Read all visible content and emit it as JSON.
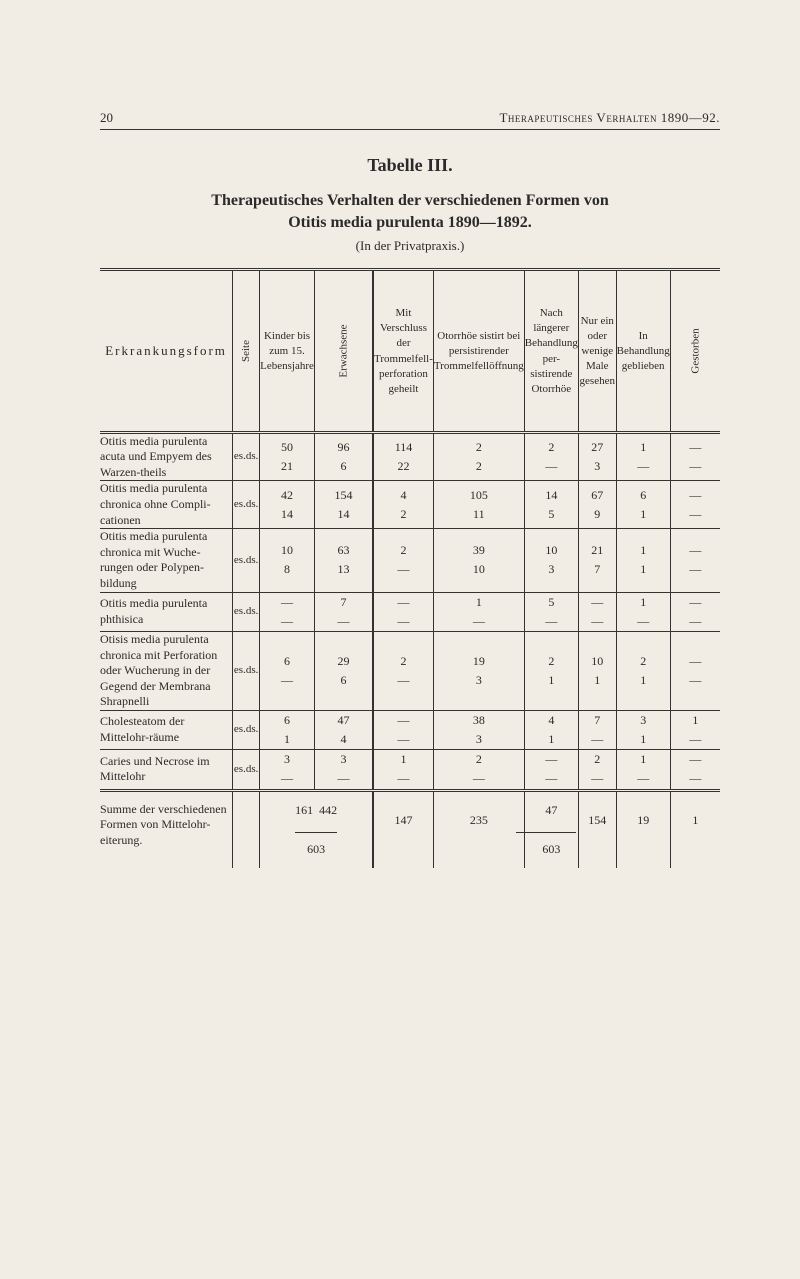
{
  "page_number": "20",
  "running_title": "Therapeutisches Verhalten 1890—92.",
  "tabelle_label": "Tabelle III.",
  "main_title": "Therapeutisches Verhalten der verschiedenen Formen von",
  "main_subtitle": "Otitis media purulenta 1890—1892.",
  "paren": "(In der Privatpraxis.)",
  "headers": {
    "rowhead": "Erkrankungsform",
    "cols": [
      "Seite",
      "Kinder bis zum 15. Lebensjahre",
      "Erwachsene",
      "Mit Verschluss der Trommelfell-perforation geheilt",
      "Otorrhöe sistirt bei persistirender Trommelfellöffnung",
      "Nach längerer Behandlung per-sistirende Otorrhöe",
      "Nur ein oder wenige Male gesehen",
      "In Behandlung geblieben",
      "Gestorben"
    ]
  },
  "seite_pair": "es.\nds.",
  "rows": [
    {
      "label": "Otitis media purulenta acuta und Empyem des Warzen-theils",
      "kinder": [
        "50",
        "21"
      ],
      "erw": [
        "96",
        "6"
      ],
      "c1": [
        "114",
        "22"
      ],
      "c2": [
        "2",
        "2"
      ],
      "c3": [
        "2",
        "—"
      ],
      "c4": [
        "27",
        "3"
      ],
      "c5": [
        "1",
        "—"
      ],
      "c6": [
        "—",
        "—"
      ]
    },
    {
      "label": "Otitis media purulenta chronica ohne Compli-cationen",
      "kinder": [
        "42",
        "14"
      ],
      "erw": [
        "154",
        "14"
      ],
      "c1": [
        "4",
        "2"
      ],
      "c2": [
        "105",
        "11"
      ],
      "c3": [
        "14",
        "5"
      ],
      "c4": [
        "67",
        "9"
      ],
      "c5": [
        "6",
        "1"
      ],
      "c6": [
        "—",
        "—"
      ]
    },
    {
      "label": "Otitis media purulenta chronica mit Wuche-rungen oder Polypen-bildung",
      "kinder": [
        "10",
        "8"
      ],
      "erw": [
        "63",
        "13"
      ],
      "c1": [
        "2",
        "—"
      ],
      "c2": [
        "39",
        "10"
      ],
      "c3": [
        "10",
        "3"
      ],
      "c4": [
        "21",
        "7"
      ],
      "c5": [
        "1",
        "1"
      ],
      "c6": [
        "—",
        "—"
      ]
    },
    {
      "label": "Otitis media purulenta phthisica",
      "kinder": [
        "—",
        "—"
      ],
      "erw": [
        "7",
        "—"
      ],
      "c1": [
        "—",
        "—"
      ],
      "c2": [
        "1",
        "—"
      ],
      "c3": [
        "5",
        "—"
      ],
      "c4": [
        "—",
        "—"
      ],
      "c5": [
        "1",
        "—"
      ],
      "c6": [
        "—",
        "—"
      ]
    },
    {
      "label": "Otisis media purulenta chronica mit Perforation oder Wucherung in der Gegend der Membrana Shrapnelli",
      "kinder": [
        "6",
        "—"
      ],
      "erw": [
        "29",
        "6"
      ],
      "c1": [
        "2",
        "—"
      ],
      "c2": [
        "19",
        "3"
      ],
      "c3": [
        "2",
        "1"
      ],
      "c4": [
        "10",
        "1"
      ],
      "c5": [
        "2",
        "1"
      ],
      "c6": [
        "—",
        "—"
      ]
    },
    {
      "label": "Cholesteatom der Mittelohr-räume",
      "kinder": [
        "6",
        "1"
      ],
      "erw": [
        "47",
        "4"
      ],
      "c1": [
        "—",
        "—"
      ],
      "c2": [
        "38",
        "3"
      ],
      "c3": [
        "4",
        "1"
      ],
      "c4": [
        "7",
        "—"
      ],
      "c5": [
        "3",
        "1"
      ],
      "c6": [
        "1",
        "—"
      ]
    },
    {
      "label": "Caries und Necrose im Mittelohr",
      "kinder": [
        "3",
        "—"
      ],
      "erw": [
        "3",
        "—"
      ],
      "c1": [
        "1",
        "—"
      ],
      "c2": [
        "2",
        "—"
      ],
      "c3": [
        "—",
        "—"
      ],
      "c4": [
        "2",
        "—"
      ],
      "c5": [
        "1",
        "—"
      ],
      "c6": [
        "—",
        "—"
      ]
    }
  ],
  "summe": {
    "label": "Summe der verschiedenen Formen von Mittelohr-eiterung.",
    "kinder_erw_top": [
      "161",
      "442"
    ],
    "kinder_erw_merged": "603",
    "c1": "147",
    "c2": "235",
    "c3": "47",
    "c4": "154",
    "c5": "19",
    "c6": "1",
    "right_merged": "603"
  },
  "colors": {
    "bg": "#f2ede4",
    "ink": "#2a2a2a",
    "rule": "#333333"
  }
}
